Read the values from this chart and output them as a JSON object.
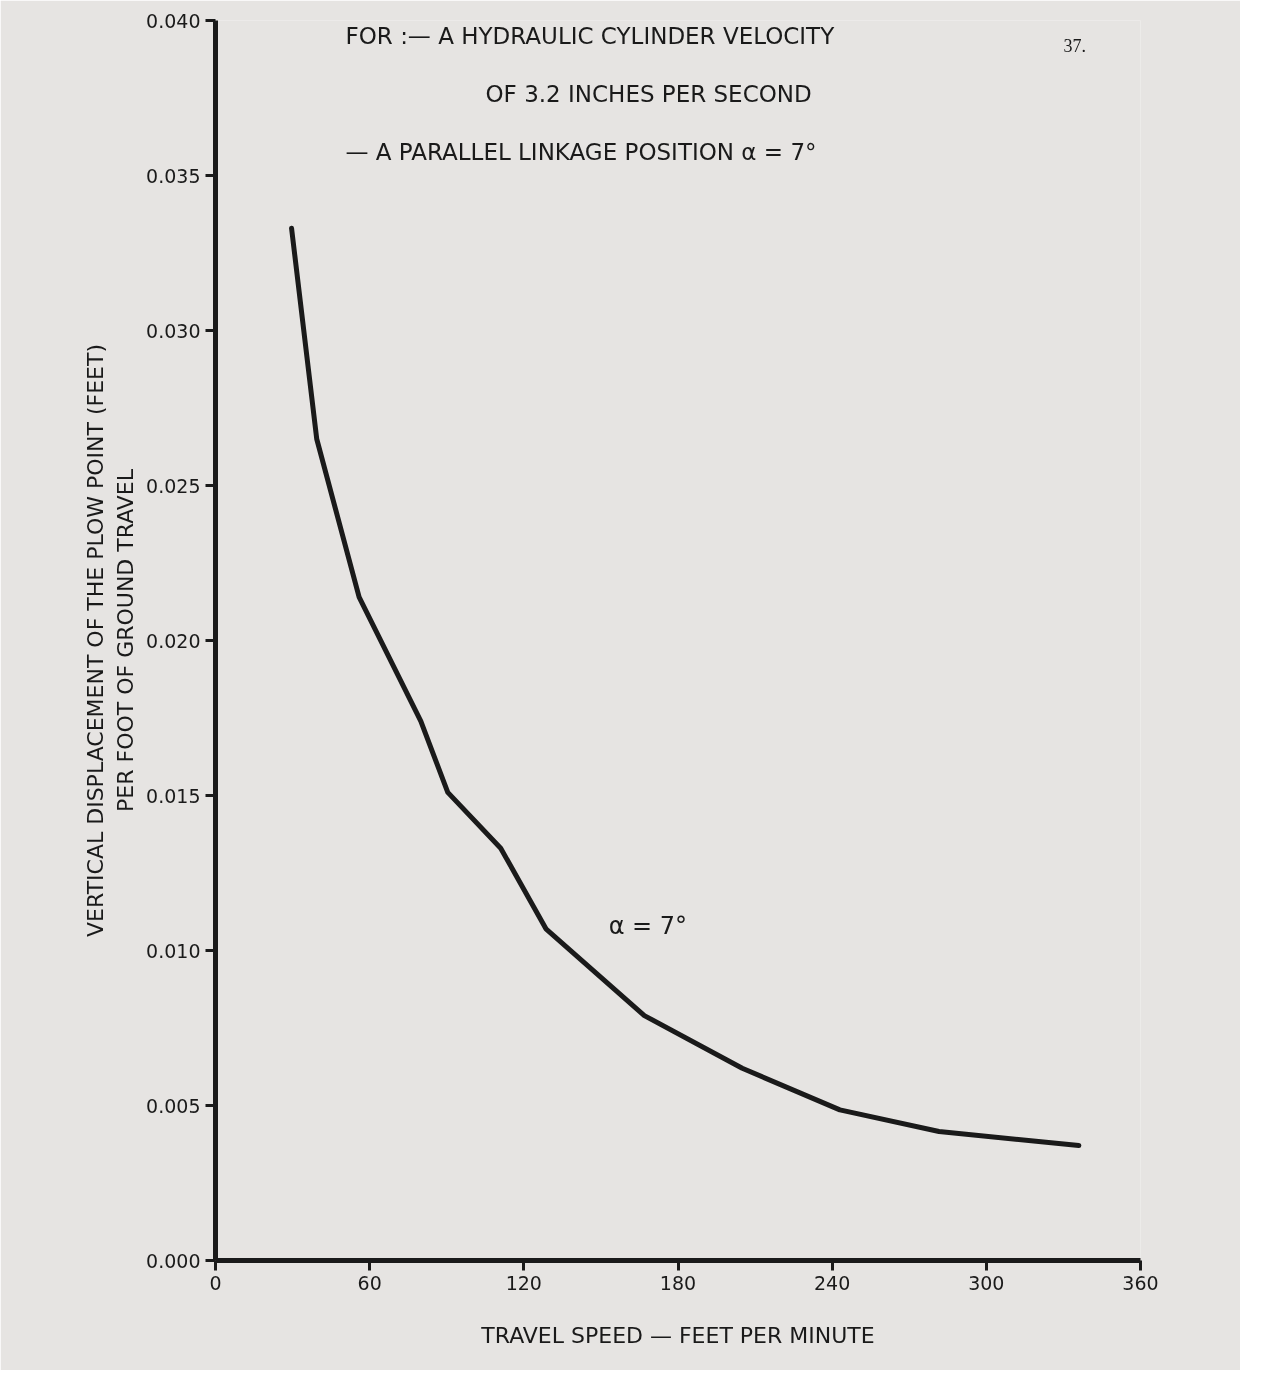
{
  "chart_data": {
    "type": "line",
    "title": "FOR :— A HYDRAULIC CYLINDER VELOCITY\nOF 3.2 INCHES PER SECOND\n— A PARALLEL LINKAGE POSITION α = 7°",
    "xlabel": "TRAVEL SPEED — FEET PER MINUTE",
    "ylabel": "VERTICAL DISPLACEMENT OF THE PLOW POINT (FEET)\nPER FOOT OF GROUND TRAVEL",
    "annotations": [
      "37.",
      "α = 7°"
    ],
    "x": [
      29.6,
      39.4,
      55.9,
      79.9,
      90.4,
      111,
      128.6,
      166.9,
      205,
      243,
      281.6,
      336
    ],
    "series": [
      {
        "color": "#1a1a1a",
        "values": [
          0.0333,
          0.0265,
          0.0214,
          0.0174,
          0.0151,
          0.0133,
          0.0107,
          0.0079,
          0.0062,
          0.00486,
          0.00416,
          0.00371
        ]
      }
    ],
    "xlim": [
      0,
      360
    ],
    "xticks": [
      0,
      60,
      120,
      180,
      240,
      300,
      360
    ],
    "ylim": [
      0,
      0.04
    ],
    "yticks": [
      {
        "value": 0,
        "label": "0.000"
      },
      {
        "value": 0.005,
        "label": "0.005"
      },
      {
        "value": 0.01,
        "label": "0.010"
      },
      {
        "value": 0.015,
        "label": "0.015"
      },
      {
        "value": 0.02,
        "label": "0.020"
      },
      {
        "value": 0.025,
        "label": "0.025"
      },
      {
        "value": 0.03,
        "label": "0.030"
      },
      {
        "value": 0.035,
        "label": "0.035"
      },
      {
        "value": 0.04,
        "label": "0.040"
      }
    ],
    "line_style": "solid"
  }
}
